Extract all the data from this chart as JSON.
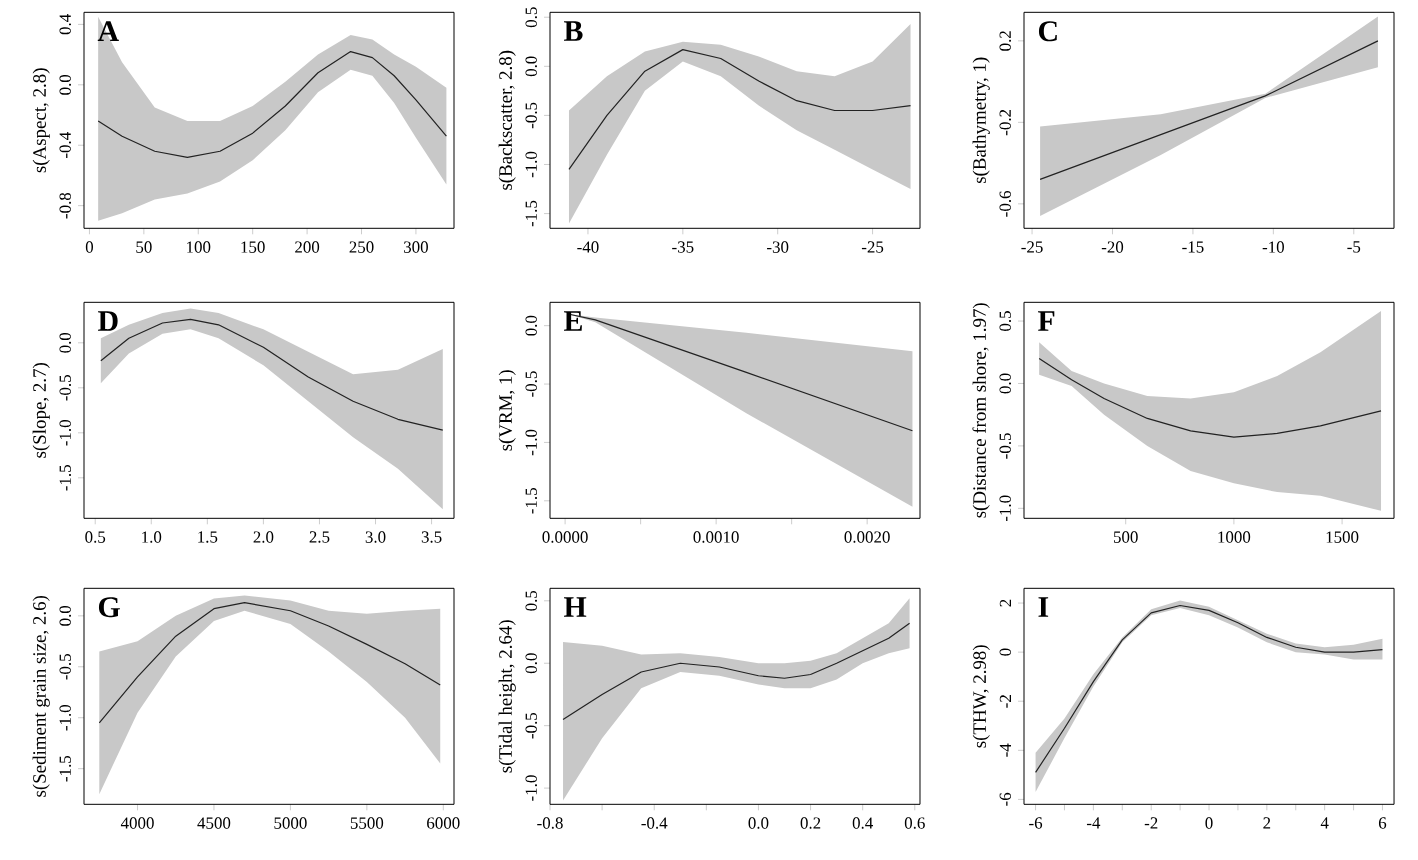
{
  "chart_data": [
    {
      "type": "line",
      "annotations": [
        "A"
      ],
      "ylabel": "s(Aspect, 2.8)",
      "xlim": [
        -5,
        335
      ],
      "ylim": [
        -0.95,
        0.48
      ],
      "xticks": [
        {
          "value": 0,
          "label": "0"
        },
        {
          "value": 50,
          "label": "50"
        },
        {
          "value": 100,
          "label": "100"
        },
        {
          "value": 150,
          "label": "150"
        },
        {
          "value": 200,
          "label": "200"
        },
        {
          "value": 250,
          "label": "250"
        },
        {
          "value": 300,
          "label": "300"
        }
      ],
      "yticks": [
        {
          "value": -0.8,
          "label": "-0.8"
        },
        {
          "value": -0.4,
          "label": "-0.4"
        },
        {
          "value": 0,
          "label": "0.0"
        },
        {
          "value": 0.4,
          "label": "0.4"
        }
      ],
      "series": [
        {
          "color": "#222222",
          "x": [
            8,
            30,
            60,
            90,
            120,
            150,
            180,
            210,
            240,
            260,
            280,
            300,
            328
          ],
          "values": [
            -0.24,
            -0.34,
            -0.44,
            -0.48,
            -0.44,
            -0.32,
            -0.14,
            0.08,
            0.22,
            0.18,
            0.06,
            -0.1,
            -0.34
          ],
          "lower": [
            -0.9,
            -0.85,
            -0.76,
            -0.72,
            -0.64,
            -0.5,
            -0.3,
            -0.05,
            0.1,
            0.06,
            -0.12,
            -0.35,
            -0.66
          ],
          "upper": [
            0.45,
            0.15,
            -0.15,
            -0.24,
            -0.24,
            -0.14,
            0.02,
            0.2,
            0.33,
            0.3,
            0.2,
            0.12,
            -0.02
          ]
        }
      ]
    },
    {
      "type": "line",
      "annotations": [
        "B"
      ],
      "ylabel": "s(Backscatter, 2.8)",
      "xlim": [
        -42,
        -22.5
      ],
      "ylim": [
        -1.65,
        0.55
      ],
      "xticks": [
        {
          "value": -40,
          "label": "-40"
        },
        {
          "value": -35,
          "label": "-35"
        },
        {
          "value": -30,
          "label": "-30"
        },
        {
          "value": -25,
          "label": "-25"
        }
      ],
      "yticks": [
        {
          "value": -1.5,
          "label": "-1.5"
        },
        {
          "value": -1,
          "label": "-1.0"
        },
        {
          "value": -0.5,
          "label": "-0.5"
        },
        {
          "value": 0,
          "label": "0.0"
        },
        {
          "value": 0.5,
          "label": "0.5"
        }
      ],
      "series": [
        {
          "color": "#222222",
          "x": [
            -41,
            -39,
            -37,
            -35,
            -33,
            -31,
            -29,
            -27,
            -25,
            -23
          ],
          "values": [
            -1.05,
            -0.5,
            -0.05,
            0.17,
            0.08,
            -0.15,
            -0.35,
            -0.45,
            -0.45,
            -0.4
          ],
          "lower": [
            -1.6,
            -0.9,
            -0.25,
            0.05,
            -0.1,
            -0.4,
            -0.65,
            -0.85,
            -1.05,
            -1.25
          ],
          "upper": [
            -0.45,
            -0.1,
            0.15,
            0.25,
            0.22,
            0.1,
            -0.05,
            -0.1,
            0.05,
            0.43
          ]
        }
      ]
    },
    {
      "type": "line",
      "annotations": [
        "C"
      ],
      "ylabel": "s(Bathymetry, 1)",
      "xlim": [
        -25.5,
        -2.5
      ],
      "ylim": [
        -0.72,
        0.34
      ],
      "xticks": [
        {
          "value": -25,
          "label": "-25"
        },
        {
          "value": -20,
          "label": "-20"
        },
        {
          "value": -15,
          "label": "-15"
        },
        {
          "value": -10,
          "label": "-10"
        },
        {
          "value": -5,
          "label": "-5"
        }
      ],
      "yticks": [
        {
          "value": -0.6,
          "label": "-0.6"
        },
        {
          "value": -0.2,
          "label": "-0.2"
        },
        {
          "value": 0.2,
          "label": "0.2"
        }
      ],
      "series": [
        {
          "color": "#222222",
          "x": [
            -24.5,
            -17,
            -10.5,
            -3.5
          ],
          "values": [
            -0.48,
            -0.26,
            -0.07,
            0.2
          ],
          "lower": [
            -0.66,
            -0.36,
            -0.08,
            0.07
          ],
          "upper": [
            -0.22,
            -0.16,
            -0.06,
            0.32
          ]
        }
      ]
    },
    {
      "type": "line",
      "annotations": [
        "D"
      ],
      "ylabel": "s(Slope, 2.7)",
      "xlim": [
        0.4,
        3.7
      ],
      "ylim": [
        -1.95,
        0.45
      ],
      "xticks": [
        {
          "value": 0.5,
          "label": "0.5"
        },
        {
          "value": 1,
          "label": "1.0"
        },
        {
          "value": 1.5,
          "label": "1.5"
        },
        {
          "value": 2,
          "label": "2.0"
        },
        {
          "value": 2.5,
          "label": "2.5"
        },
        {
          "value": 3,
          "label": "3.0"
        },
        {
          "value": 3.5,
          "label": "3.5"
        }
      ],
      "yticks": [
        {
          "value": -1.5,
          "label": "-1.5"
        },
        {
          "value": -1,
          "label": "-1.0"
        },
        {
          "value": -0.5,
          "label": "-0.5"
        },
        {
          "value": 0,
          "label": "0.0"
        }
      ],
      "series": [
        {
          "color": "#222222",
          "x": [
            0.55,
            0.8,
            1.1,
            1.35,
            1.6,
            2.0,
            2.4,
            2.8,
            3.2,
            3.6
          ],
          "values": [
            -0.2,
            0.05,
            0.22,
            0.26,
            0.2,
            -0.05,
            -0.38,
            -0.65,
            -0.85,
            -0.97
          ],
          "lower": [
            -0.45,
            -0.12,
            0.1,
            0.15,
            0.05,
            -0.25,
            -0.65,
            -1.05,
            -1.4,
            -1.85
          ],
          "upper": [
            0.05,
            0.2,
            0.33,
            0.38,
            0.33,
            0.15,
            -0.1,
            -0.35,
            -0.3,
            -0.07
          ]
        }
      ]
    },
    {
      "type": "line",
      "annotations": [
        "E"
      ],
      "ylabel": "s(VRM, 1)",
      "xlim": [
        -0.0001,
        0.00235
      ],
      "ylim": [
        -1.65,
        0.2
      ],
      "xticks": [
        {
          "value": 0,
          "label": "0.0000"
        },
        {
          "value": 0.0005,
          "label": null
        },
        {
          "value": 0.001,
          "label": "0.0010"
        },
        {
          "value": 0.0015,
          "label": null
        },
        {
          "value": 0.002,
          "label": "0.0020"
        }
      ],
      "yticks": [
        {
          "value": -1.5,
          "label": "-1.5"
        },
        {
          "value": -1,
          "label": "-1.0"
        },
        {
          "value": -0.5,
          "label": "-0.5"
        },
        {
          "value": 0,
          "label": "0.0"
        }
      ],
      "series": [
        {
          "color": "#222222",
          "x": [
            2e-05,
            0.0002,
            0.0012,
            0.0023
          ],
          "values": [
            0.1,
            0.05,
            -0.4,
            -0.9
          ],
          "lower": [
            0.1,
            0.03,
            -0.75,
            -1.55
          ],
          "upper": [
            0.1,
            0.07,
            -0.06,
            -0.22
          ]
        }
      ]
    },
    {
      "type": "line",
      "annotations": [
        "F"
      ],
      "ylabel": "s(Distance from shore, 1.97)",
      "xlim": [
        30,
        1740
      ],
      "ylim": [
        -1.08,
        0.65
      ],
      "xticks": [
        {
          "value": 500,
          "label": "500"
        },
        {
          "value": 1000,
          "label": "1000"
        },
        {
          "value": 1500,
          "label": "1500"
        }
      ],
      "yticks": [
        {
          "value": -1,
          "label": "-1.0"
        },
        {
          "value": -0.5,
          "label": "-0.5"
        },
        {
          "value": 0,
          "label": "0.0"
        },
        {
          "value": 0.5,
          "label": "0.5"
        }
      ],
      "series": [
        {
          "color": "#222222",
          "x": [
            100,
            250,
            400,
            600,
            800,
            1000,
            1200,
            1400,
            1680
          ],
          "values": [
            0.2,
            0.03,
            -0.12,
            -0.28,
            -0.38,
            -0.43,
            -0.4,
            -0.34,
            -0.22
          ],
          "lower": [
            0.07,
            -0.02,
            -0.25,
            -0.5,
            -0.7,
            -0.8,
            -0.87,
            -0.9,
            -1.02
          ],
          "upper": [
            0.33,
            0.1,
            0.0,
            -0.1,
            -0.12,
            -0.07,
            0.06,
            0.25,
            0.58
          ]
        }
      ]
    },
    {
      "type": "line",
      "annotations": [
        "G"
      ],
      "ylabel": "s(Sediment grain size, 2.6)",
      "xlim": [
        3650,
        6070
      ],
      "ylim": [
        -1.85,
        0.27
      ],
      "xticks": [
        {
          "value": 4000,
          "label": "4000"
        },
        {
          "value": 4500,
          "label": "4500"
        },
        {
          "value": 5000,
          "label": "5000"
        },
        {
          "value": 5500,
          "label": "5500"
        },
        {
          "value": 6000,
          "label": "6000"
        }
      ],
      "yticks": [
        {
          "value": -1.5,
          "label": "-1.5"
        },
        {
          "value": -1,
          "label": "-1.0"
        },
        {
          "value": -0.5,
          "label": "-0.5"
        },
        {
          "value": 0,
          "label": "0.0"
        }
      ],
      "series": [
        {
          "color": "#222222",
          "x": [
            3750,
            4000,
            4250,
            4500,
            4700,
            5000,
            5250,
            5500,
            5750,
            5980
          ],
          "values": [
            -1.05,
            -0.6,
            -0.2,
            0.07,
            0.13,
            0.05,
            -0.1,
            -0.28,
            -0.47,
            -0.68
          ],
          "lower": [
            -1.75,
            -0.95,
            -0.4,
            -0.05,
            0.05,
            -0.08,
            -0.35,
            -0.65,
            -1.0,
            -1.45
          ],
          "upper": [
            -0.35,
            -0.25,
            0.0,
            0.17,
            0.2,
            0.15,
            0.05,
            0.02,
            0.05,
            0.07
          ]
        }
      ]
    },
    {
      "type": "line",
      "annotations": [
        "H"
      ],
      "ylabel": "s(Tidal height, 2.64)",
      "xlim": [
        -0.8,
        0.62
      ],
      "ylim": [
        -1.13,
        0.6
      ],
      "xticks": [
        {
          "value": -0.8,
          "label": "-0.8"
        },
        {
          "value": -0.6,
          "label": null
        },
        {
          "value": -0.4,
          "label": "-0.4"
        },
        {
          "value": -0.2,
          "label": null
        },
        {
          "value": 0,
          "label": "0.0"
        },
        {
          "value": 0.2,
          "label": "0.2"
        },
        {
          "value": 0.4,
          "label": "0.4"
        },
        {
          "value": 0.6,
          "label": "0.6"
        }
      ],
      "yticks": [
        {
          "value": -1,
          "label": "-1.0"
        },
        {
          "value": -0.5,
          "label": "-0.5"
        },
        {
          "value": 0,
          "label": "0.0"
        },
        {
          "value": 0.5,
          "label": "0.5"
        }
      ],
      "series": [
        {
          "color": "#222222",
          "x": [
            -0.75,
            -0.6,
            -0.45,
            -0.3,
            -0.15,
            0.0,
            0.1,
            0.2,
            0.3,
            0.4,
            0.5,
            0.58
          ],
          "values": [
            -0.45,
            -0.25,
            -0.07,
            0.0,
            -0.03,
            -0.1,
            -0.12,
            -0.09,
            0.0,
            0.1,
            0.2,
            0.32
          ],
          "lower": [
            -1.1,
            -0.6,
            -0.2,
            -0.07,
            -0.1,
            -0.17,
            -0.2,
            -0.2,
            -0.13,
            0.0,
            0.08,
            0.12
          ],
          "upper": [
            0.17,
            0.14,
            0.07,
            0.08,
            0.05,
            0.0,
            0.0,
            0.02,
            0.08,
            0.2,
            0.32,
            0.52
          ]
        }
      ]
    },
    {
      "type": "line",
      "annotations": [
        "I"
      ],
      "ylabel": "s(THW, 2.98)",
      "xlim": [
        -6.4,
        6.4
      ],
      "ylim": [
        -6.2,
        2.6
      ],
      "xticks": [
        {
          "value": -6,
          "label": "-6"
        },
        {
          "value": -5,
          "label": null
        },
        {
          "value": -4,
          "label": "-4"
        },
        {
          "value": -3,
          "label": null
        },
        {
          "value": -2,
          "label": "-2"
        },
        {
          "value": -1,
          "label": null
        },
        {
          "value": 0,
          "label": "0"
        },
        {
          "value": 1,
          "label": null
        },
        {
          "value": 2,
          "label": "2"
        },
        {
          "value": 3,
          "label": null
        },
        {
          "value": 4,
          "label": "4"
        },
        {
          "value": 5,
          "label": null
        },
        {
          "value": 6,
          "label": "6"
        }
      ],
      "yticks": [
        {
          "value": -6,
          "label": "-6"
        },
        {
          "value": -4,
          "label": "-4"
        },
        {
          "value": -2,
          "label": "-2"
        },
        {
          "value": 0,
          "label": "0"
        },
        {
          "value": 2,
          "label": "2"
        }
      ],
      "series": [
        {
          "color": "#222222",
          "x": [
            -6,
            -5,
            -4,
            -3,
            -2,
            -1,
            0,
            1,
            2,
            3,
            4,
            5,
            6
          ],
          "values": [
            -4.9,
            -3.1,
            -1.2,
            0.5,
            1.6,
            1.9,
            1.7,
            1.2,
            0.6,
            0.2,
            0.0,
            0.0,
            0.1
          ],
          "lower": [
            -5.7,
            -3.5,
            -1.4,
            0.4,
            1.5,
            1.8,
            1.5,
            1.0,
            0.4,
            0.0,
            -0.1,
            -0.3,
            -0.3
          ],
          "upper": [
            -4.1,
            -2.7,
            -0.9,
            0.6,
            1.75,
            2.1,
            1.85,
            1.3,
            0.75,
            0.35,
            0.2,
            0.3,
            0.55
          ]
        }
      ]
    }
  ]
}
